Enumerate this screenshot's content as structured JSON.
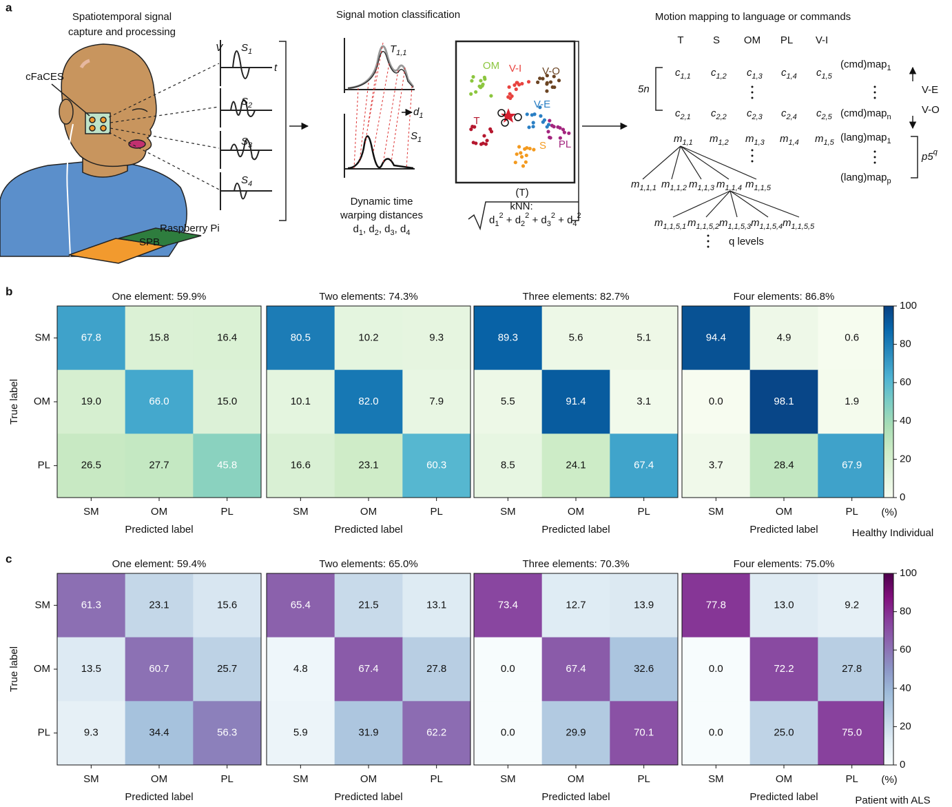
{
  "panel_labels": [
    "a",
    "b",
    "c"
  ],
  "panel_a": {
    "capture_title": [
      "Spatiotemporal signal",
      "capture and processing"
    ],
    "device_label": "cFaCES",
    "voltage_axis": "V",
    "time_axis": "t",
    "signals": [
      [
        {
          "t": "S"
        },
        {
          "sub": "1"
        }
      ],
      [
        {
          "t": "S"
        },
        {
          "sub": "2"
        }
      ],
      [
        {
          "t": "S"
        },
        {
          "sub": "3"
        }
      ],
      [
        {
          "t": "S"
        },
        {
          "sub": "4"
        }
      ]
    ],
    "spb_label": "SPB",
    "pi_label": "Raspberry Pi",
    "classification_title": "Signal motion classification",
    "template_label": [
      {
        "t": "T"
      },
      {
        "sub": "1,1"
      }
    ],
    "distance_label": [
      {
        "t": "d"
      },
      {
        "sub": "1"
      }
    ],
    "signal_label": [
      {
        "t": "S"
      },
      {
        "sub": "1"
      }
    ],
    "dtw_caption": [
      "Dynamic time",
      "warping distances",
      [
        {
          "t": "d"
        },
        {
          "sub": "1"
        },
        {
          "t": ", d"
        },
        {
          "sub": "2"
        },
        {
          "t": ", d"
        },
        {
          "sub": "3"
        },
        {
          "t": ", d"
        },
        {
          "sub": "4"
        }
      ]
    ],
    "clusters": [
      {
        "label": "OM",
        "color": "#8cc63f"
      },
      {
        "label": "V-I",
        "color": "#e8433f"
      },
      {
        "label": "V-O",
        "color": "#6b4423"
      },
      {
        "label": "V-E",
        "color": "#2a7fc4"
      },
      {
        "label": "T",
        "color": "#b5172e"
      },
      {
        "label": "S",
        "color": "#f39a1f"
      },
      {
        "label": "PL",
        "color": "#a3257e"
      }
    ],
    "scatter_caption": "(T)",
    "knn_label": "kNN:",
    "knn_formula": [
      {
        "t": "d"
      },
      {
        "sub": "1"
      },
      {
        "sup": "2"
      },
      {
        "t": " + d"
      },
      {
        "sub": "2"
      },
      {
        "sup": "2"
      },
      {
        "t": " + d"
      },
      {
        "sub": "3"
      },
      {
        "sup": "2"
      },
      {
        "t": " + d"
      },
      {
        "sub": "4"
      },
      {
        "sup": "2"
      }
    ],
    "mapping_title": "Motion mapping to language or commands",
    "motion_columns": [
      "T",
      "S",
      "OM",
      "PL",
      "V-I"
    ],
    "repeat_label": "5n",
    "command_rows": [
      [
        [
          {
            "t": "c"
          },
          {
            "sub": "1,1"
          }
        ],
        [
          {
            "t": "c"
          },
          {
            "sub": "1,2"
          }
        ],
        [
          {
            "t": "c"
          },
          {
            "sub": "1,3"
          }
        ],
        [
          {
            "t": "c"
          },
          {
            "sub": "1,4"
          }
        ],
        [
          {
            "t": "c"
          },
          {
            "sub": "1,5"
          }
        ]
      ],
      [
        [
          {
            "t": "c"
          },
          {
            "sub": "2,1"
          }
        ],
        [
          {
            "t": "c"
          },
          {
            "sub": "2,2"
          }
        ],
        [
          {
            "t": "c"
          },
          {
            "sub": "2,3"
          }
        ],
        [
          {
            "t": "c"
          },
          {
            "sub": "2,4"
          }
        ],
        [
          {
            "t": "c"
          },
          {
            "sub": "2,5"
          }
        ]
      ]
    ],
    "command_maps": [
      [
        {
          "t": "(cmd)map"
        },
        {
          "sub": "1"
        }
      ],
      [
        {
          "t": "(cmd)map"
        },
        {
          "sub": "n"
        }
      ]
    ],
    "navigation": [
      "V-E",
      "V-O"
    ],
    "motion_row": [
      [
        {
          "t": "m"
        },
        {
          "sub": "1,1"
        }
      ],
      [
        {
          "t": "m"
        },
        {
          "sub": "1,2"
        }
      ],
      [
        {
          "t": "m"
        },
        {
          "sub": "1,3"
        }
      ],
      [
        {
          "t": "m"
        },
        {
          "sub": "1,4"
        }
      ],
      [
        {
          "t": "m"
        },
        {
          "sub": "1,5"
        }
      ]
    ],
    "language_maps": [
      [
        {
          "t": "(lang)map"
        },
        {
          "sub": "1"
        }
      ],
      [
        {
          "t": "(lang)map"
        },
        {
          "sub": "p"
        }
      ]
    ],
    "language_count": [
      {
        "t": "p5"
      },
      {
        "sup": "q"
      }
    ],
    "tree_level_2": [
      [
        {
          "t": "m"
        },
        {
          "sub": "1,1,1"
        }
      ],
      [
        {
          "t": "m"
        },
        {
          "sub": "1,1,2"
        }
      ],
      [
        {
          "t": "m"
        },
        {
          "sub": "1,1,3"
        }
      ],
      [
        {
          "t": "m"
        },
        {
          "sub": "1,1,4"
        }
      ],
      [
        {
          "t": "m"
        },
        {
          "sub": "1,1,5"
        }
      ]
    ],
    "tree_level_3": [
      [
        {
          "t": "m"
        },
        {
          "sub": "1,1,5,1"
        }
      ],
      [
        {
          "t": "m"
        },
        {
          "sub": "1,1,5,2"
        }
      ],
      [
        {
          "t": "m"
        },
        {
          "sub": "1,1,5,3"
        }
      ],
      [
        {
          "t": "m"
        },
        {
          "sub": "1,1,5,4"
        }
      ],
      [
        {
          "t": "m"
        },
        {
          "sub": "1,1,5,5"
        }
      ]
    ],
    "levels_label": "q levels"
  },
  "chart_data": [
    {
      "type": "heatmap",
      "title": "One element: 59.9%",
      "categories": [
        "SM",
        "OM",
        "PL"
      ],
      "row_categories": [
        "SM",
        "OM",
        "PL"
      ],
      "xlabel": "Predicted label",
      "ylabel": "True label",
      "values": [
        [
          67.8,
          15.8,
          16.4
        ],
        [
          19.0,
          66.0,
          15.0
        ],
        [
          26.5,
          27.7,
          45.8
        ]
      ],
      "value_labels": [
        [
          "67.8",
          "15.8",
          "16.4"
        ],
        [
          "19.0",
          "66.0",
          "15.0"
        ],
        [
          "26.5",
          "27.7",
          "45.8"
        ]
      ],
      "vlim": [
        0,
        100
      ],
      "colormap": [
        "#f7fcf0",
        "#e0f3db",
        "#ccebc5",
        "#a8ddb5",
        "#7bccc4",
        "#4eb3d3",
        "#2b8cbe",
        "#0868ac",
        "#084081"
      ]
    },
    {
      "type": "heatmap",
      "title": "Two elements: 74.3%",
      "categories": [
        "SM",
        "OM",
        "PL"
      ],
      "xlabel": "Predicted label",
      "values": [
        [
          80.5,
          10.2,
          9.3
        ],
        [
          10.1,
          82.0,
          7.9
        ],
        [
          16.6,
          23.1,
          60.3
        ]
      ],
      "value_labels": [
        [
          "80.5",
          "10.2",
          "9.3"
        ],
        [
          "10.1",
          "82.0",
          "7.9"
        ],
        [
          "16.6",
          "23.1",
          "60.3"
        ]
      ],
      "vlim": [
        0,
        100
      ],
      "colormap": [
        "#f7fcf0",
        "#e0f3db",
        "#ccebc5",
        "#a8ddb5",
        "#7bccc4",
        "#4eb3d3",
        "#2b8cbe",
        "#0868ac",
        "#084081"
      ]
    },
    {
      "type": "heatmap",
      "title": "Three elements: 82.7%",
      "categories": [
        "SM",
        "OM",
        "PL"
      ],
      "xlabel": "Predicted label",
      "values": [
        [
          89.3,
          5.6,
          5.1
        ],
        [
          5.5,
          91.4,
          3.1
        ],
        [
          8.5,
          24.1,
          67.4
        ]
      ],
      "value_labels": [
        [
          "89.3",
          "5.6",
          "5.1"
        ],
        [
          "5.5",
          "91.4",
          "3.1"
        ],
        [
          "8.5",
          "24.1",
          "67.4"
        ]
      ],
      "vlim": [
        0,
        100
      ],
      "colormap": [
        "#f7fcf0",
        "#e0f3db",
        "#ccebc5",
        "#a8ddb5",
        "#7bccc4",
        "#4eb3d3",
        "#2b8cbe",
        "#0868ac",
        "#084081"
      ]
    },
    {
      "type": "heatmap",
      "title": "Four elements: 86.8%",
      "categories": [
        "SM",
        "OM",
        "PL"
      ],
      "xlabel": "Predicted label",
      "values": [
        [
          94.4,
          4.9,
          0.6
        ],
        [
          0.0,
          98.1,
          1.9
        ],
        [
          3.7,
          28.4,
          67.9
        ]
      ],
      "value_labels": [
        [
          "94.4",
          "4.9",
          "0.6"
        ],
        [
          "0.0",
          "98.1",
          "1.9"
        ],
        [
          "3.7",
          "28.4",
          "67.9"
        ]
      ],
      "vlim": [
        0,
        100
      ],
      "colormap": [
        "#f7fcf0",
        "#e0f3db",
        "#ccebc5",
        "#a8ddb5",
        "#7bccc4",
        "#4eb3d3",
        "#2b8cbe",
        "#0868ac",
        "#084081"
      ]
    },
    {
      "type": "colorbar",
      "ylim": [
        0,
        100
      ],
      "yticks": [
        0,
        20,
        40,
        60,
        80,
        100
      ],
      "unit": "(%)",
      "caption": "Healthy Individual",
      "colormap": [
        "#f7fcf0",
        "#e0f3db",
        "#ccebc5",
        "#a8ddb5",
        "#7bccc4",
        "#4eb3d3",
        "#2b8cbe",
        "#0868ac",
        "#084081"
      ]
    },
    {
      "type": "heatmap",
      "title": "One element: 59.4%",
      "categories": [
        "SM",
        "OM",
        "PL"
      ],
      "row_categories": [
        "SM",
        "OM",
        "PL"
      ],
      "xlabel": "Predicted label",
      "ylabel": "True label",
      "values": [
        [
          61.3,
          23.1,
          15.6
        ],
        [
          13.5,
          60.7,
          25.7
        ],
        [
          9.3,
          34.4,
          56.3
        ]
      ],
      "value_labels": [
        [
          "61.3",
          "23.1",
          "15.6"
        ],
        [
          "13.5",
          "60.7",
          "25.7"
        ],
        [
          "9.3",
          "34.4",
          "56.3"
        ]
      ],
      "vlim": [
        0,
        100
      ],
      "colormap": [
        "#f7fcfd",
        "#e0ecf4",
        "#bfd3e6",
        "#9ebcda",
        "#8c96c6",
        "#8c6bb1",
        "#88419d",
        "#810f7c",
        "#4d004b"
      ]
    },
    {
      "type": "heatmap",
      "title": "Two elements: 65.0%",
      "categories": [
        "SM",
        "OM",
        "PL"
      ],
      "xlabel": "Predicted label",
      "values": [
        [
          65.4,
          21.5,
          13.1
        ],
        [
          4.8,
          67.4,
          27.8
        ],
        [
          5.9,
          31.9,
          62.2
        ]
      ],
      "value_labels": [
        [
          "65.4",
          "21.5",
          "13.1"
        ],
        [
          "4.8",
          "67.4",
          "27.8"
        ],
        [
          "5.9",
          "31.9",
          "62.2"
        ]
      ],
      "vlim": [
        0,
        100
      ],
      "colormap": [
        "#f7fcfd",
        "#e0ecf4",
        "#bfd3e6",
        "#9ebcda",
        "#8c96c6",
        "#8c6bb1",
        "#88419d",
        "#810f7c",
        "#4d004b"
      ]
    },
    {
      "type": "heatmap",
      "title": "Three elements: 70.3%",
      "categories": [
        "SM",
        "OM",
        "PL"
      ],
      "xlabel": "Predicted label",
      "values": [
        [
          73.4,
          12.7,
          13.9
        ],
        [
          0.0,
          67.4,
          32.6
        ],
        [
          0.0,
          29.9,
          70.1
        ]
      ],
      "value_labels": [
        [
          "73.4",
          "12.7",
          "13.9"
        ],
        [
          "0.0",
          "67.4",
          "32.6"
        ],
        [
          "0.0",
          "29.9",
          "70.1"
        ]
      ],
      "vlim": [
        0,
        100
      ],
      "colormap": [
        "#f7fcfd",
        "#e0ecf4",
        "#bfd3e6",
        "#9ebcda",
        "#8c96c6",
        "#8c6bb1",
        "#88419d",
        "#810f7c",
        "#4d004b"
      ]
    },
    {
      "type": "heatmap",
      "title": "Four elements: 75.0%",
      "categories": [
        "SM",
        "OM",
        "PL"
      ],
      "xlabel": "Predicted label",
      "values": [
        [
          77.8,
          13.0,
          9.2
        ],
        [
          0.0,
          72.2,
          27.8
        ],
        [
          0.0,
          25.0,
          75.0
        ]
      ],
      "value_labels": [
        [
          "77.8",
          "13.0",
          "9.2"
        ],
        [
          "0.0",
          "72.2",
          "27.8"
        ],
        [
          "0.0",
          "25.0",
          "75.0"
        ]
      ],
      "vlim": [
        0,
        100
      ],
      "colormap": [
        "#f7fcfd",
        "#e0ecf4",
        "#bfd3e6",
        "#9ebcda",
        "#8c96c6",
        "#8c6bb1",
        "#88419d",
        "#810f7c",
        "#4d004b"
      ]
    },
    {
      "type": "colorbar",
      "ylim": [
        0,
        100
      ],
      "yticks": [
        0,
        20,
        40,
        60,
        80,
        100
      ],
      "unit": "(%)",
      "caption": "Patient with ALS",
      "colormap": [
        "#f7fcfd",
        "#e0ecf4",
        "#bfd3e6",
        "#9ebcda",
        "#8c96c6",
        "#8c6bb1",
        "#88419d",
        "#810f7c",
        "#4d004b"
      ]
    }
  ]
}
